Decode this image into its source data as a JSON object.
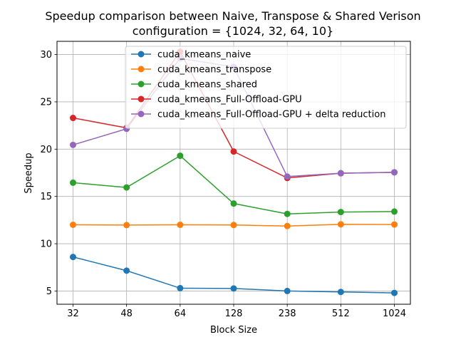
{
  "chart_data": {
    "type": "line",
    "title": "Speedup comparison between Naive, Transpose & Shared Verison",
    "subtitle": "configuration = {1024, 32, 64, 10}",
    "xlabel": "Block Size",
    "ylabel": "Speedup",
    "categories": [
      "32",
      "48",
      "64",
      "128",
      "238",
      "512",
      "1024"
    ],
    "ylim": [
      3.6,
      31.4
    ],
    "yticks": [
      5,
      10,
      15,
      20,
      25,
      30
    ],
    "grid": true,
    "legend_position": "top-right",
    "series": [
      {
        "name": "cuda_kmeans_naive",
        "color": "#1f77b4",
        "values": [
          8.6,
          7.15,
          5.3,
          5.27,
          5.0,
          4.9,
          4.8
        ]
      },
      {
        "name": "cuda_kmeans_transpose",
        "color": "#ff7f0e",
        "values": [
          12.0,
          11.97,
          12.0,
          11.98,
          11.87,
          12.05,
          12.03
        ]
      },
      {
        "name": "cuda_kmeans_shared",
        "color": "#2ca02c",
        "values": [
          16.45,
          15.95,
          19.3,
          14.25,
          13.15,
          13.35,
          13.4
        ]
      },
      {
        "name": "cuda_kmeans_Full-Offload-GPU",
        "color": "#d62728",
        "values": [
          23.3,
          22.25,
          30.3,
          19.75,
          16.95,
          17.45,
          17.55
        ]
      },
      {
        "name": "cuda_kmeans_Full-Offload-GPU + delta reduction",
        "color": "#9467bd",
        "values": [
          20.45,
          22.15,
          29.6,
          28.7,
          17.1,
          17.45,
          17.55
        ]
      }
    ]
  }
}
